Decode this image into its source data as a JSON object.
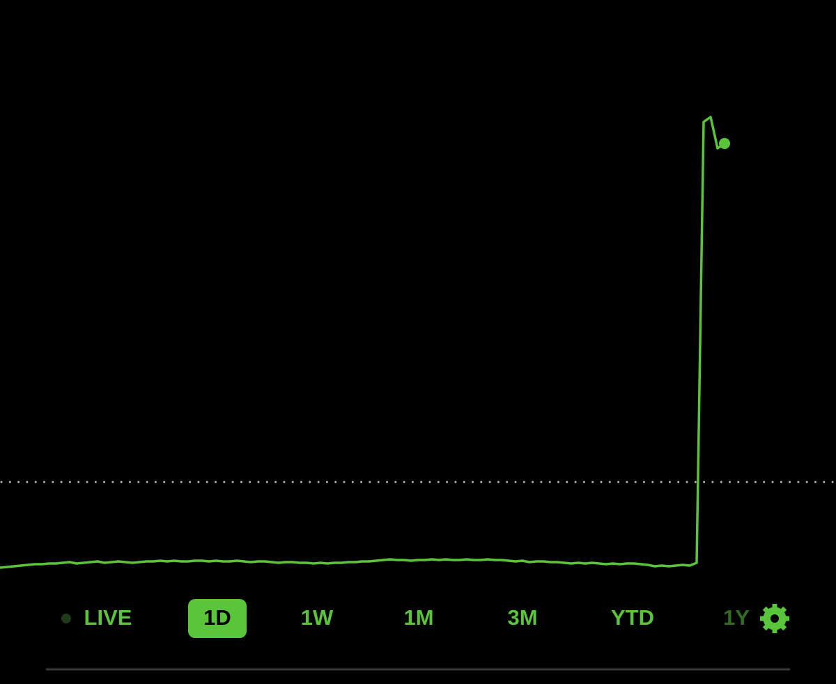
{
  "chart_data": {
    "type": "line",
    "color": "#5ac53b",
    "baseline": 100,
    "ylim": [
      86.2,
      159.2
    ],
    "values": [
      87.7,
      87.8,
      87.9,
      88.0,
      88.1,
      88.2,
      88.2,
      88.3,
      88.3,
      88.4,
      88.5,
      88.3,
      88.4,
      88.5,
      88.6,
      88.4,
      88.5,
      88.6,
      88.5,
      88.4,
      88.5,
      88.6,
      88.6,
      88.7,
      88.6,
      88.7,
      88.6,
      88.6,
      88.7,
      88.7,
      88.6,
      88.7,
      88.6,
      88.6,
      88.7,
      88.6,
      88.5,
      88.6,
      88.6,
      88.5,
      88.4,
      88.5,
      88.5,
      88.4,
      88.4,
      88.3,
      88.4,
      88.3,
      88.4,
      88.4,
      88.5,
      88.5,
      88.6,
      88.6,
      88.7,
      88.8,
      88.9,
      88.8,
      88.8,
      88.7,
      88.8,
      88.8,
      88.9,
      88.8,
      88.9,
      88.8,
      88.8,
      88.9,
      88.8,
      88.8,
      88.9,
      88.8,
      88.8,
      88.7,
      88.6,
      88.7,
      88.5,
      88.6,
      88.6,
      88.5,
      88.5,
      88.4,
      88.3,
      88.4,
      88.3,
      88.4,
      88.3,
      88.2,
      88.3,
      88.2,
      88.3,
      88.3,
      88.2,
      88.1,
      87.9,
      88.0,
      87.9,
      88.0,
      88.1,
      88.0,
      88.4,
      151.7,
      152.4,
      147.9,
      148.6
    ]
  },
  "periods": [
    "LIVE",
    "1D",
    "1W",
    "1M",
    "3M",
    "YTD",
    "1Y"
  ],
  "selected_period": 1
}
